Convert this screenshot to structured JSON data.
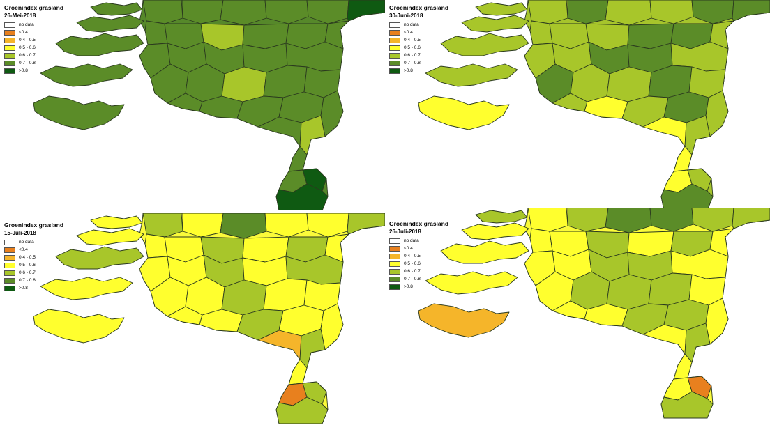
{
  "legend": {
    "title": "Groenindex grasland",
    "classes": [
      {
        "label": "no data",
        "color": "#ffffff"
      },
      {
        "label": "<0.4",
        "color": "#e8801e"
      },
      {
        "label": "0.4 - 0.5",
        "color": "#f5b52a"
      },
      {
        "label": "0.5 - 0.6",
        "color": "#ffff2e"
      },
      {
        "label": "0.6 - 0.7",
        "color": "#a8c62a"
      },
      {
        "label": "0.7 - 0.8",
        "color": "#5b8c28"
      },
      {
        "label": ">0.8",
        "color": "#0f5a12"
      }
    ]
  },
  "panels": [
    {
      "date": "26-Mei-2018",
      "base_color": "#56882a",
      "accent_color": "#9fbf2c"
    },
    {
      "date": "30-Juni-2018",
      "base_color": "#a6c42c",
      "accent_color": "#6a9a2a"
    },
    {
      "date": "15-Juli-2018",
      "base_color": "#fafa3a",
      "accent_color": "#b9cd2e"
    },
    {
      "date": "26-Juli-2018",
      "base_color": "#fafa3a",
      "accent_color": "#9ab92c"
    }
  ]
}
